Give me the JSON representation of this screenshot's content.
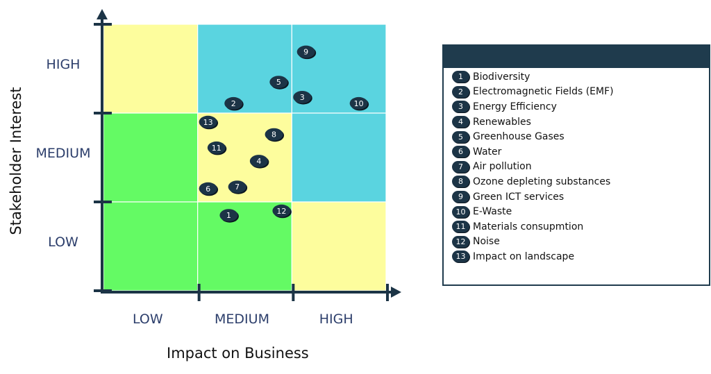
{
  "chart_data": {
    "type": "scatter",
    "xlabel": "Impact on Business",
    "ylabel": "Stakeholder Interest",
    "x_ticks": [
      "LOW",
      "MEDIUM",
      "HIGH"
    ],
    "y_ticks": [
      "LOW",
      "MEDIUM",
      "HIGH"
    ],
    "xlim": [
      0,
      3
    ],
    "ylim": [
      0,
      3
    ],
    "grid": {
      "cell_colors": [
        [
          "#fdfd9d",
          "#5ad4e0",
          "#5ad4e0"
        ],
        [
          "#64fa64",
          "#fdfd9d",
          "#5ad4e0"
        ],
        [
          "#64fa64",
          "#64fa64",
          "#fdfd9d"
        ]
      ]
    },
    "points": [
      {
        "id": 1,
        "label": "1",
        "x": 1.33,
        "y": 0.85
      },
      {
        "id": 2,
        "label": "2",
        "x": 1.38,
        "y": 2.11
      },
      {
        "id": 3,
        "label": "3",
        "x": 2.11,
        "y": 2.18
      },
      {
        "id": 4,
        "label": "4",
        "x": 1.65,
        "y": 1.46
      },
      {
        "id": 5,
        "label": "5",
        "x": 1.86,
        "y": 2.35
      },
      {
        "id": 6,
        "label": "6",
        "x": 1.11,
        "y": 1.15
      },
      {
        "id": 7,
        "label": "7",
        "x": 1.42,
        "y": 1.17
      },
      {
        "id": 8,
        "label": "8",
        "x": 1.81,
        "y": 1.76
      },
      {
        "id": 9,
        "label": "9",
        "x": 2.15,
        "y": 2.69
      },
      {
        "id": 10,
        "label": "10",
        "x": 2.71,
        "y": 2.11
      },
      {
        "id": 11,
        "label": "11",
        "x": 1.2,
        "y": 1.61
      },
      {
        "id": 12,
        "label": "12",
        "x": 1.89,
        "y": 0.9
      },
      {
        "id": 13,
        "label": "13",
        "x": 1.11,
        "y": 1.9
      }
    ]
  },
  "legend": {
    "items": [
      {
        "num": "1",
        "label": "Biodiversity"
      },
      {
        "num": "2",
        "label": "Electromagnetic Fields (EMF)"
      },
      {
        "num": "3",
        "label": "Energy Efficiency"
      },
      {
        "num": "4",
        "label": "Renewables"
      },
      {
        "num": "5",
        "label": "Greenhouse Gases"
      },
      {
        "num": "6",
        "label": "Water"
      },
      {
        "num": "7",
        "label": "Air pollution"
      },
      {
        "num": "8",
        "label": "Ozone depleting substances"
      },
      {
        "num": "9",
        "label": "Green ICT services"
      },
      {
        "num": "10",
        "label": "E-Waste"
      },
      {
        "num": "11",
        "label": "Materials consupmtion"
      },
      {
        "num": "12",
        "label": "Noise"
      },
      {
        "num": "13",
        "label": "Impact on landscape"
      }
    ]
  },
  "colors": {
    "axis": "#1c3446",
    "marker": "#1c3446",
    "marker_text": "#ffffff",
    "tick_text": "#2c3e6b"
  }
}
